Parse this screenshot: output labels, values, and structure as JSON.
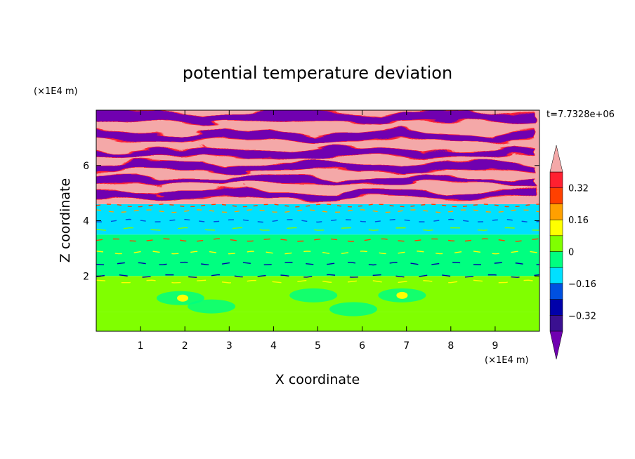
{
  "chart_data": {
    "type": "heatmap",
    "title": "potential temperature deviation",
    "time_label": "t=7.7328e+06",
    "xlabel": "X coordinate",
    "ylabel": "Z coordinate",
    "x_unit": "(×1E4 m)",
    "y_unit": "(×1E4 m)",
    "xlim": [
      0,
      10
    ],
    "ylim": [
      0,
      8
    ],
    "x_ticks": [
      1,
      2,
      3,
      4,
      5,
      6,
      7,
      8,
      9
    ],
    "y_ticks": [
      2,
      4,
      6
    ],
    "colorbar": {
      "levels": [
        -0.4,
        -0.32,
        -0.24,
        -0.16,
        -0.08,
        0,
        0.08,
        0.16,
        0.24,
        0.32,
        0.4
      ],
      "labels": [
        "0.32",
        "0.16",
        "0",
        "−0.16",
        "−0.32"
      ],
      "label_values": [
        0.32,
        0.16,
        0,
        -0.16,
        -0.32
      ],
      "colors_low_to_high": [
        "#3a1090",
        "#0000aa",
        "#0050e0",
        "#00e0ff",
        "#00ff80",
        "#80ff00",
        "#ffff00",
        "#ffa000",
        "#ff4000",
        "#ff2030"
      ],
      "under_color": "#7000b0",
      "over_color": "#f4a8a8"
    },
    "field_bands": [
      {
        "z": [
          0.0,
          0.7
        ],
        "value": 0.04
      },
      {
        "z": [
          0.7,
          2.0
        ],
        "value": 0.0
      },
      {
        "z": [
          2.0,
          3.5
        ],
        "value": -0.02
      },
      {
        "z": [
          3.5,
          4.6
        ],
        "value": -0.1
      },
      {
        "z": [
          4.6,
          8.0
        ],
        "value": 0.45
      }
    ],
    "cold_layers": [
      {
        "z": 7.75,
        "thickness": 0.35
      },
      {
        "z": 7.05,
        "thickness": 0.3
      },
      {
        "z": 6.45,
        "thickness": 0.25
      },
      {
        "z": 5.95,
        "thickness": 0.25
      },
      {
        "z": 5.45,
        "thickness": 0.22
      },
      {
        "z": 4.95,
        "thickness": 0.25
      }
    ]
  }
}
